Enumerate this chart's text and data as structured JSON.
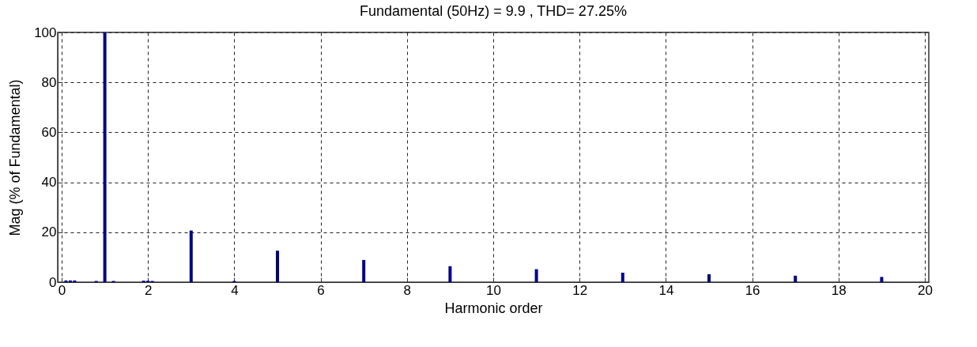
{
  "chart_data": {
    "type": "bar",
    "title": "Fundamental (50Hz) = 9.9 , THD= 27.25%",
    "xlabel": "Harmonic order",
    "ylabel": "Mag (% of Fundamental)",
    "x": [
      0.1,
      0.2,
      0.3,
      0.8,
      1,
      1.2,
      1.9,
      2,
      2.1,
      3,
      4,
      5,
      7,
      9,
      11,
      13,
      15,
      17,
      19
    ],
    "values": [
      0.7,
      0.7,
      0.7,
      0.5,
      100,
      0.5,
      0.6,
      0.6,
      0.5,
      20.7,
      0.5,
      12.6,
      8.9,
      6.4,
      5.2,
      3.8,
      3.2,
      2.6,
      2.1
    ],
    "color": "#000099",
    "xlim": [
      0,
      20
    ],
    "xticks": [
      0,
      2,
      4,
      6,
      8,
      10,
      12,
      14,
      16,
      18,
      20
    ],
    "ylim": [
      0,
      100
    ],
    "yticks": [
      0,
      20,
      40,
      60,
      80,
      100
    ],
    "grid": true,
    "line_style": "dashed"
  }
}
